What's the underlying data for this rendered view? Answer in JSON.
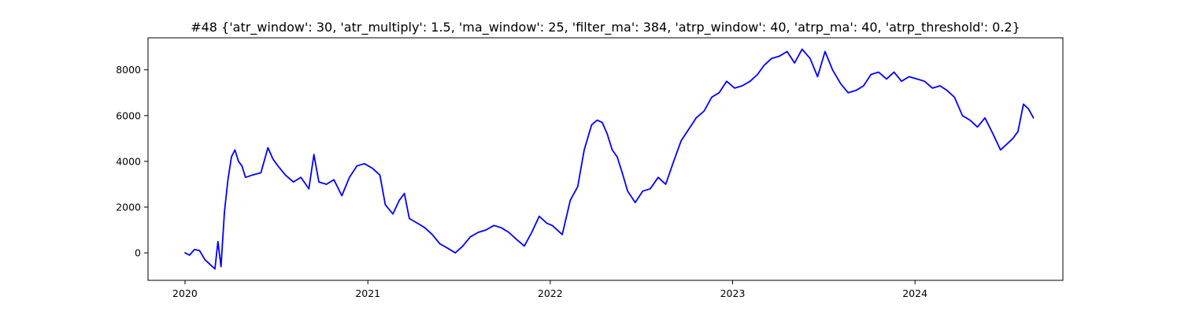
{
  "chart_data": {
    "type": "line",
    "title": "#48 {'atr_window': 30, 'atr_multiply': 1.5, 'ma_window': 25, 'filter_ma': 384, 'atrp_window': 40, 'atrp_ma': 40, 'atrp_threshold': 0.2}",
    "xlabel": "",
    "ylabel": "",
    "x_axis": "date",
    "xlim": [
      "2019-10-19",
      "2024-10-23"
    ],
    "ylim": [
      -1200,
      9400
    ],
    "x_ticks": [
      {
        "label": "2020",
        "value": "2020-01-01"
      },
      {
        "label": "2021",
        "value": "2021-01-01"
      },
      {
        "label": "2022",
        "value": "2022-01-01"
      },
      {
        "label": "2023",
        "value": "2023-01-01"
      },
      {
        "label": "2024",
        "value": "2024-01-01"
      }
    ],
    "y_ticks": [
      0,
      2000,
      4000,
      6000,
      8000
    ],
    "grid": false,
    "series": [
      {
        "color": "#0000ff",
        "x": [
          "2020-01-01",
          "2020-01-10",
          "2020-01-20",
          "2020-01-30",
          "2020-02-10",
          "2020-02-20",
          "2020-03-01",
          "2020-03-07",
          "2020-03-13",
          "2020-03-20",
          "2020-03-27",
          "2020-04-03",
          "2020-04-10",
          "2020-04-17",
          "2020-04-24",
          "2020-05-01",
          "2020-05-15",
          "2020-06-01",
          "2020-06-15",
          "2020-06-25",
          "2020-07-05",
          "2020-07-20",
          "2020-08-05",
          "2020-08-20",
          "2020-09-05",
          "2020-09-15",
          "2020-09-25",
          "2020-10-10",
          "2020-10-25",
          "2020-11-10",
          "2020-11-25",
          "2020-12-10",
          "2020-12-25",
          "2021-01-10",
          "2021-01-25",
          "2021-02-05",
          "2021-02-20",
          "2021-03-05",
          "2021-03-15",
          "2021-03-25",
          "2021-04-10",
          "2021-04-25",
          "2021-05-10",
          "2021-05-25",
          "2021-06-10",
          "2021-06-25",
          "2021-07-10",
          "2021-07-25",
          "2021-08-10",
          "2021-08-25",
          "2021-09-10",
          "2021-09-25",
          "2021-10-10",
          "2021-10-25",
          "2021-11-10",
          "2021-11-25",
          "2021-12-10",
          "2021-12-25",
          "2022-01-05",
          "2022-01-15",
          "2022-01-25",
          "2022-02-10",
          "2022-02-25",
          "2022-03-10",
          "2022-03-25",
          "2022-04-05",
          "2022-04-15",
          "2022-04-25",
          "2022-05-05",
          "2022-05-15",
          "2022-05-25",
          "2022-06-05",
          "2022-06-20",
          "2022-07-05",
          "2022-07-20",
          "2022-08-05",
          "2022-08-20",
          "2022-09-05",
          "2022-09-20",
          "2022-10-05",
          "2022-10-20",
          "2022-11-05",
          "2022-11-20",
          "2022-12-05",
          "2022-12-20",
          "2023-01-05",
          "2023-01-20",
          "2023-02-05",
          "2023-02-20",
          "2023-03-05",
          "2023-03-20",
          "2023-04-05",
          "2023-04-20",
          "2023-05-05",
          "2023-05-20",
          "2023-06-05",
          "2023-06-20",
          "2023-07-05",
          "2023-07-20",
          "2023-08-05",
          "2023-08-20",
          "2023-09-05",
          "2023-09-20",
          "2023-10-05",
          "2023-10-20",
          "2023-11-05",
          "2023-11-20",
          "2023-12-05",
          "2023-12-20",
          "2024-01-05",
          "2024-01-20",
          "2024-02-05",
          "2024-02-20",
          "2024-03-05",
          "2024-03-20",
          "2024-04-05",
          "2024-04-20",
          "2024-05-05",
          "2024-05-20",
          "2024-06-05",
          "2024-06-20",
          "2024-07-05",
          "2024-07-15",
          "2024-07-25",
          "2024-08-05",
          "2024-08-15",
          "2024-08-25"
        ],
        "y": [
          0,
          -100,
          150,
          100,
          -300,
          -500,
          -700,
          500,
          -600,
          1800,
          3200,
          4200,
          4500,
          4000,
          3800,
          3300,
          3400,
          3500,
          4600,
          4100,
          3800,
          3400,
          3100,
          3300,
          2800,
          4300,
          3100,
          3000,
          3200,
          2500,
          3300,
          3800,
          3900,
          3700,
          3400,
          2100,
          1700,
          2300,
          2600,
          1500,
          1300,
          1100,
          800,
          400,
          200,
          0,
          300,
          700,
          900,
          1000,
          1200,
          1100,
          900,
          600,
          300,
          900,
          1600,
          1300,
          1200,
          1000,
          800,
          2300,
          2900,
          4500,
          5600,
          5800,
          5700,
          5200,
          4500,
          4200,
          3500,
          2700,
          2200,
          2700,
          2800,
          3300,
          3000,
          4000,
          4900,
          5400,
          5900,
          6200,
          6800,
          7000,
          7500,
          7200,
          7300,
          7500,
          7800,
          8200,
          8500,
          8600,
          8800,
          8300,
          8900,
          8500,
          7700,
          8800,
          8000,
          7400,
          7000,
          7100,
          7300,
          7800,
          7900,
          7600,
          7900,
          7500,
          7700,
          7600,
          7500,
          7200,
          7300,
          7100,
          6800,
          6000,
          5800,
          5500,
          5900,
          5200,
          4500,
          4800,
          5000,
          5300,
          6500,
          6300,
          5900
        ]
      }
    ]
  }
}
